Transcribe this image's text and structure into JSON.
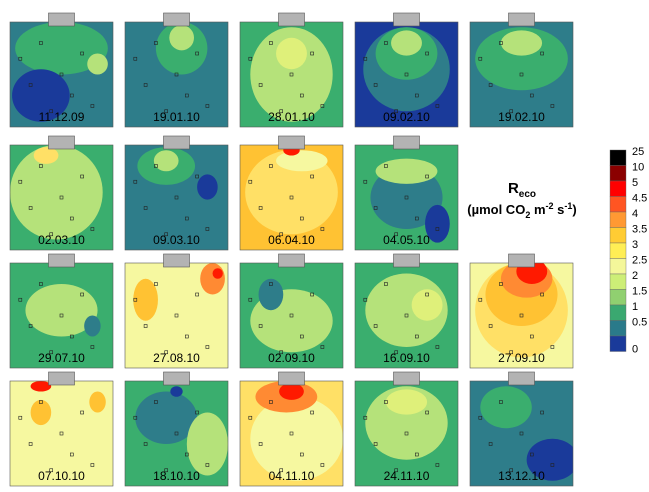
{
  "panels": [
    {
      "label": "11.12.09"
    },
    {
      "label": "19.01.10"
    },
    {
      "label": "28.01.10"
    },
    {
      "label": "09.02.10"
    },
    {
      "label": "19.02.10"
    },
    {
      "label": "02.03.10"
    },
    {
      "label": "09.03.10"
    },
    {
      "label": "06.04.10"
    },
    {
      "label": "04.05.10"
    },
    {
      "label": "29.07.10"
    },
    {
      "label": "27.08.10"
    },
    {
      "label": "02.09.10"
    },
    {
      "label": "16.09.10"
    },
    {
      "label": "27.09.10"
    },
    {
      "label": "07.10.10"
    },
    {
      "label": "18.10.10"
    },
    {
      "label": "04.11.10"
    },
    {
      "label": "24.11.10"
    },
    {
      "label": "13.12.10"
    }
  ],
  "legend": {
    "title": "R",
    "title_sub": "eco",
    "unit_parts": [
      "(µmol CO",
      "2",
      " m",
      "-2",
      " s",
      "-1",
      ")"
    ],
    "levels": [
      25,
      10,
      5,
      4.5,
      4,
      3.5,
      3,
      2.5,
      2,
      1.5,
      1,
      0.5,
      0
    ],
    "colors": [
      "#000000",
      "#8b0000",
      "#ff0000",
      "#ff5522",
      "#ff9933",
      "#ffcc33",
      "#ffee55",
      "#f4f79a",
      "#cdee77",
      "#90d070",
      "#3aa870",
      "#2a7a8a",
      "#1a3a9a"
    ]
  }
}
